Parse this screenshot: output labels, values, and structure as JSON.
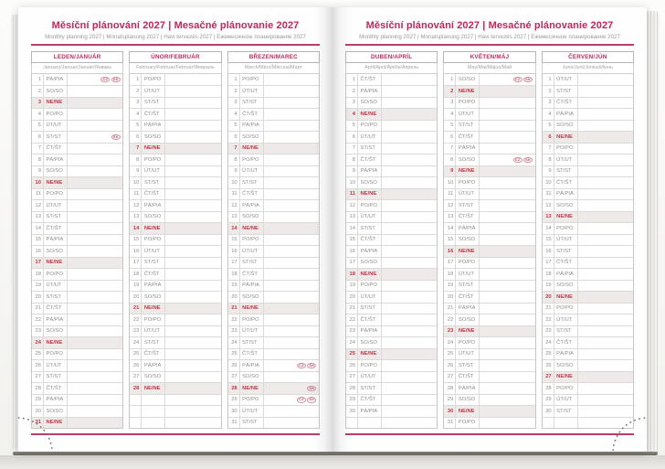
{
  "header": {
    "title": "Měsíční plánování 2027 | Mesačné plánovanie 2027",
    "subtitle": "Monthly planning 2027 | Monatsplanung 2027 | Havi tervezés 2027 | Ежемесячное планирование 2027"
  },
  "colors": {
    "accent": "#c2275a",
    "rule": "#b84066",
    "day_red": "#c13845",
    "sunday_row_bg": "#edeae9",
    "badge_outline": "#d08f9e"
  },
  "rows_per_month": 31,
  "sunday_abbr": "NE/NE",
  "months": [
    {
      "id": "leden-januar",
      "header": "LEDEN/JANUÁR",
      "subheader": "January/Januar/Január/Январь",
      "day_abbrs": [
        "PÁ/PIA",
        "SO/SO",
        "NE/NE",
        "PO/PO",
        "ÚT/UT",
        "ST/ST",
        "ČT/ŠT",
        "PÁ/PIA",
        "SO/SO",
        "NE/NE",
        "PO/PO",
        "ÚT/UT",
        "ST/ST",
        "ČT/ŠT",
        "PÁ/PIA",
        "SO/SO",
        "NE/NE",
        "PO/PO",
        "ÚT/UT",
        "ST/ST",
        "ČT/ŠT",
        "PÁ/PIA",
        "SO/SO",
        "NE/NE",
        "PO/PO",
        "ÚT/UT",
        "ST/ST",
        "ČT/ŠT",
        "PÁ/PIA",
        "SO/SO",
        "NE/NE"
      ],
      "holiday_badges": {
        "1": [
          "CZ",
          "SK"
        ],
        "6": [
          "SK"
        ]
      }
    },
    {
      "id": "unor-februar",
      "header": "ÚNOR/FEBRUÁR",
      "subheader": "February/Februar/Február/Февраль",
      "day_abbrs": [
        "PO/PO",
        "ÚT/UT",
        "ST/ST",
        "ČT/ŠT",
        "PÁ/PIA",
        "SO/SO",
        "NE/NE",
        "PO/PO",
        "ÚT/UT",
        "ST/ST",
        "ČT/ŠT",
        "PÁ/PIA",
        "SO/SO",
        "NE/NE",
        "PO/PO",
        "ÚT/UT",
        "ST/ST",
        "ČT/ŠT",
        "PÁ/PIA",
        "SO/SO",
        "NE/NE",
        "PO/PO",
        "ÚT/UT",
        "ST/ST",
        "ČT/ŠT",
        "PÁ/PIA",
        "SO/SO",
        "NE/NE"
      ],
      "holiday_badges": {}
    },
    {
      "id": "brezen-marec",
      "header": "BŘEZEN/MAREC",
      "subheader": "March/März/Március/Март",
      "day_abbrs": [
        "PO/PO",
        "ÚT/UT",
        "ST/ST",
        "ČT/ŠT",
        "PÁ/PIA",
        "SO/SO",
        "NE/NE",
        "PO/PO",
        "ÚT/UT",
        "ST/ST",
        "ČT/ŠT",
        "PÁ/PIA",
        "SO/SO",
        "NE/NE",
        "PO/PO",
        "ÚT/UT",
        "ST/ST",
        "ČT/ŠT",
        "PÁ/PIA",
        "SO/SO",
        "NE/NE",
        "PO/PO",
        "ÚT/UT",
        "ST/ST",
        "ČT/ŠT",
        "PÁ/PIA",
        "SO/SO",
        "NE/NE",
        "PO/PO",
        "ÚT/UT",
        "ST/ST"
      ],
      "holiday_badges": {
        "26": [
          "CZ",
          "SK"
        ],
        "28": [
          "SK"
        ],
        "29": [
          "CZ",
          "SK"
        ]
      }
    },
    {
      "id": "duben-april",
      "header": "DUBEN/APRÍL",
      "subheader": "April/April/Április/Апрель",
      "day_abbrs": [
        "ČT/ŠT",
        "PÁ/PIA",
        "SO/SO",
        "NE/NE",
        "PO/PO",
        "ÚT/UT",
        "ST/ST",
        "ČT/ŠT",
        "PÁ/PIA",
        "SO/SO",
        "NE/NE",
        "PO/PO",
        "ÚT/UT",
        "ST/ST",
        "ČT/ŠT",
        "PÁ/PIA",
        "SO/SO",
        "NE/NE",
        "PO/PO",
        "ÚT/UT",
        "ST/ST",
        "ČT/ŠT",
        "PÁ/PIA",
        "SO/SO",
        "NE/NE",
        "PO/PO",
        "ÚT/UT",
        "ST/ST",
        "ČT/ŠT",
        "PÁ/PIA"
      ],
      "holiday_badges": {}
    },
    {
      "id": "kveten-maj",
      "header": "KVĚTEN/MÁJ",
      "subheader": "May/Mai/Május/Май",
      "day_abbrs": [
        "SO/SO",
        "NE/NE",
        "PO/PO",
        "ÚT/UT",
        "ST/ST",
        "ČT/ŠT",
        "PÁ/PIA",
        "SO/SO",
        "NE/NE",
        "PO/PO",
        "ÚT/UT",
        "ST/ST",
        "ČT/ŠT",
        "PÁ/PIA",
        "SO/SO",
        "NE/NE",
        "PO/PO",
        "ÚT/UT",
        "ST/ST",
        "ČT/ŠT",
        "PÁ/PIA",
        "SO/SO",
        "NE/NE",
        "PO/PO",
        "ÚT/UT",
        "ST/ST",
        "ČT/ŠT",
        "PÁ/PIA",
        "SO/SO",
        "NE/NE",
        "PO/PO"
      ],
      "holiday_badges": {
        "1": [
          "CZ",
          "SK"
        ],
        "8": [
          "CZ",
          "SK"
        ]
      }
    },
    {
      "id": "cerven-jun",
      "header": "ČERVEN/JÚN",
      "subheader": "June/Juni/Június/Июнь",
      "day_abbrs": [
        "ÚT/UT",
        "ST/ST",
        "ČT/ŠT",
        "PÁ/PIA",
        "SO/SO",
        "NE/NE",
        "PO/PO",
        "ÚT/UT",
        "ST/ST",
        "ČT/ŠT",
        "PÁ/PIA",
        "SO/SO",
        "NE/NE",
        "PO/PO",
        "ÚT/UT",
        "ST/ST",
        "ČT/ŠT",
        "PÁ/PIA",
        "SO/SO",
        "NE/NE",
        "PO/PO",
        "ÚT/UT",
        "ST/ST",
        "ČT/ŠT",
        "PÁ/PIA",
        "SO/SO",
        "NE/NE",
        "PO/PO",
        "ÚT/UT",
        "ST/ST"
      ],
      "holiday_badges": {}
    }
  ]
}
